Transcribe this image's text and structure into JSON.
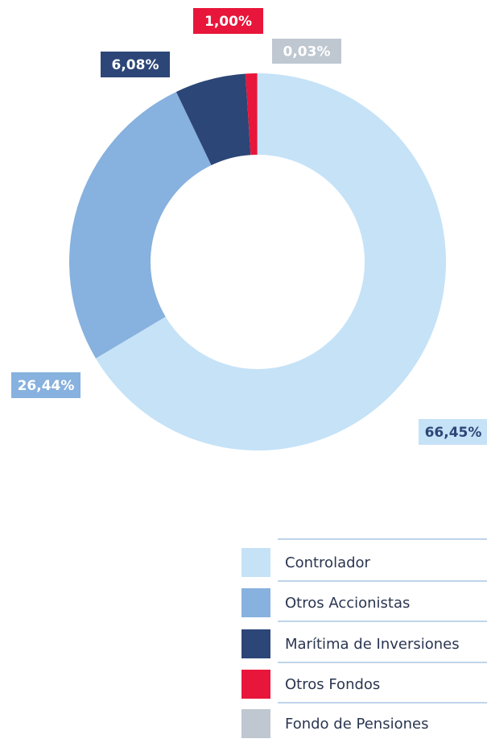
{
  "chart_data": {
    "type": "donut",
    "categories": [
      "Controlador",
      "Otros Accionistas",
      "Marítima de Inversiones",
      "Otros Fondos",
      "Fondo de Pensiones"
    ],
    "values": [
      66.45,
      26.44,
      6.08,
      1.0,
      0.03
    ],
    "value_labels": [
      "66,45%",
      "26,44%",
      "6,08%",
      "1,00%",
      "0,03%"
    ],
    "colors": [
      "#c5e2f7",
      "#87b1de",
      "#2c4677",
      "#e8163a",
      "#bfc7d1"
    ]
  }
}
